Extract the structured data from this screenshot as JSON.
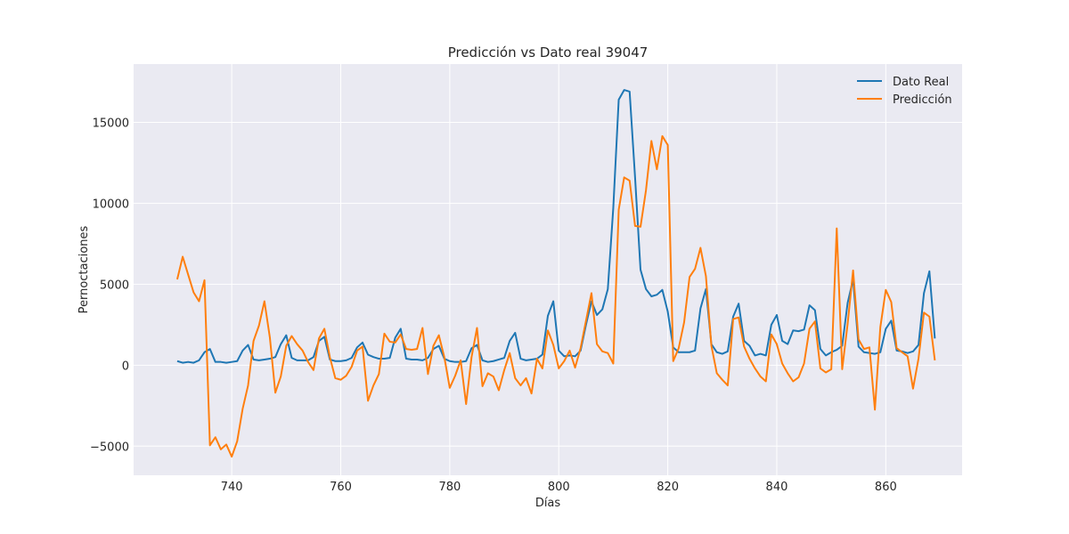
{
  "chart_data": {
    "type": "line",
    "title": "Predicción vs Dato real 39047",
    "xlabel": "Días",
    "ylabel": "Pernoctaciones",
    "xlim": [
      722,
      874
    ],
    "ylim": [
      -6800,
      18600
    ],
    "x_ticks": [
      740,
      760,
      780,
      800,
      820,
      840,
      860
    ],
    "y_ticks": [
      -5000,
      0,
      5000,
      10000,
      15000
    ],
    "grid": true,
    "legend_position": "top-right",
    "x_start": 730,
    "series": [
      {
        "name": "Dato Real",
        "color": "#1f77b4",
        "values": [
          250,
          150,
          200,
          150,
          300,
          800,
          1000,
          200,
          200,
          150,
          200,
          250,
          900,
          1250,
          350,
          300,
          350,
          400,
          500,
          1300,
          1850,
          450,
          300,
          300,
          300,
          500,
          1500,
          1750,
          350,
          250,
          250,
          300,
          450,
          1100,
          1400,
          650,
          500,
          400,
          400,
          450,
          1700,
          2250,
          400,
          350,
          350,
          300,
          450,
          1000,
          1200,
          400,
          250,
          200,
          200,
          250,
          1050,
          1250,
          300,
          200,
          250,
          350,
          450,
          1500,
          2000,
          400,
          300,
          350,
          400,
          650,
          3050,
          3950,
          900,
          550,
          600,
          550,
          900,
          2500,
          3950,
          3100,
          3450,
          4700,
          9700,
          16400,
          17000,
          16900,
          11600,
          5900,
          4700,
          4250,
          4350,
          4650,
          3300,
          1100,
          800,
          800,
          800,
          900,
          3500,
          4700,
          1300,
          800,
          700,
          850,
          3000,
          3800,
          1500,
          1200,
          600,
          700,
          600,
          2500,
          3100,
          1500,
          1300,
          2150,
          2100,
          2200,
          3700,
          3400,
          1000,
          600,
          800,
          950,
          1200,
          3850,
          5300,
          1150,
          800,
          750,
          700,
          800,
          2250,
          2750,
          900,
          850,
          750,
          850,
          1250,
          4450,
          5800,
          1650
        ]
      },
      {
        "name": "Predicción",
        "color": "#ff7f0e",
        "values": [
          5300,
          6700,
          5600,
          4500,
          3950,
          5250,
          -4950,
          -4450,
          -5200,
          -4900,
          -5650,
          -4700,
          -2700,
          -1250,
          1500,
          2450,
          3950,
          1700,
          -1700,
          -700,
          1200,
          1800,
          1300,
          900,
          200,
          -300,
          1650,
          2250,
          500,
          -800,
          -900,
          -650,
          -100,
          900,
          1150,
          -2200,
          -1250,
          -550,
          1950,
          1450,
          1400,
          1900,
          1000,
          950,
          1000,
          2300,
          -550,
          1200,
          1850,
          500,
          -1400,
          -650,
          300,
          -2400,
          500,
          2300,
          -1300,
          -500,
          -700,
          -1550,
          -300,
          750,
          -800,
          -1250,
          -800,
          -1750,
          400,
          -200,
          2150,
          1250,
          -200,
          250,
          900,
          -150,
          1050,
          2750,
          4450,
          1300,
          850,
          750,
          100,
          9600,
          11600,
          11400,
          8600,
          8550,
          10800,
          13850,
          12100,
          14150,
          13600,
          250,
          1050,
          2650,
          5450,
          5950,
          7250,
          5500,
          1200,
          -500,
          -900,
          -1250,
          2850,
          2950,
          1150,
          400,
          -200,
          -700,
          -1000,
          1900,
          1300,
          100,
          -500,
          -1000,
          -750,
          100,
          2250,
          2700,
          -200,
          -450,
          -250,
          8450,
          -250,
          2550,
          5850,
          1600,
          1000,
          1100,
          -2750,
          2350,
          4650,
          3900,
          1050,
          800,
          550,
          -1450,
          400,
          3250,
          3000,
          300
        ]
      }
    ]
  }
}
